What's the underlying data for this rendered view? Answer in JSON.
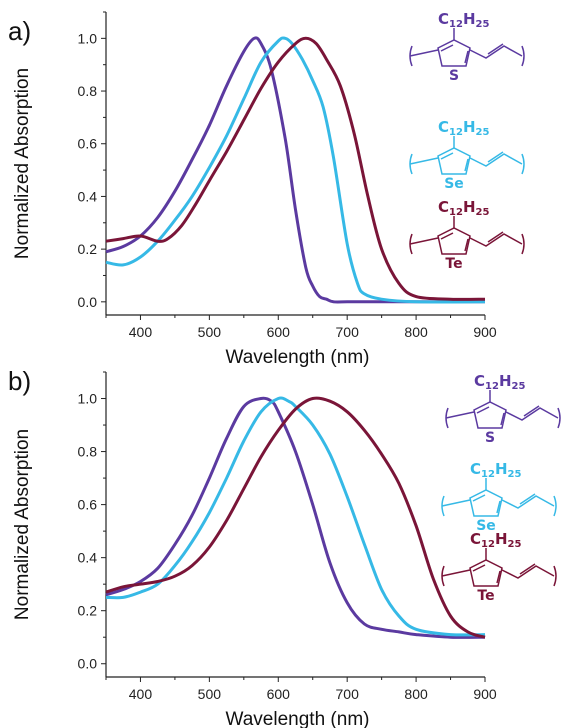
{
  "colors": {
    "thiophene": "#5b3aa0",
    "selenophene": "#36b9e6",
    "tellurophene": "#7a1538"
  },
  "chart_data": [
    {
      "type": "line",
      "panel_label": "a)",
      "xlabel": "Wavelength (nm)",
      "ylabel": "Normalized Absorption",
      "xlim": [
        350,
        900
      ],
      "ylim": [
        -0.05,
        1.1
      ],
      "xticks": [
        "400",
        "500",
        "600",
        "700",
        "800",
        "900"
      ],
      "yticks": [
        "0.0",
        "0.2",
        "0.4",
        "0.6",
        "0.8",
        "1.0"
      ],
      "grid": false,
      "legend": "structures at right",
      "series": [
        {
          "key": "thiophene",
          "x": [
            350,
            375,
            400,
            425,
            450,
            475,
            500,
            525,
            550,
            565,
            575,
            590,
            610,
            625,
            640,
            650,
            660,
            670,
            680,
            700,
            725,
            750,
            800,
            900
          ],
          "y": [
            0.19,
            0.21,
            0.25,
            0.32,
            0.42,
            0.54,
            0.67,
            0.82,
            0.95,
            1.0,
            0.98,
            0.88,
            0.62,
            0.35,
            0.13,
            0.06,
            0.02,
            0.01,
            0.0,
            0.0,
            0.0,
            0.0,
            0.0,
            0.0
          ]
        },
        {
          "key": "selenophene",
          "x": [
            350,
            375,
            400,
            425,
            450,
            475,
            500,
            525,
            550,
            575,
            600,
            610,
            620,
            635,
            650,
            665,
            680,
            700,
            715,
            725,
            750,
            800,
            900
          ],
          "y": [
            0.15,
            0.14,
            0.17,
            0.23,
            0.31,
            0.4,
            0.51,
            0.63,
            0.77,
            0.91,
            0.99,
            1.0,
            0.98,
            0.92,
            0.84,
            0.74,
            0.55,
            0.22,
            0.07,
            0.03,
            0.01,
            0.0,
            0.0
          ]
        },
        {
          "key": "tellurophene",
          "x": [
            350,
            375,
            400,
            425,
            440,
            460,
            480,
            500,
            525,
            550,
            575,
            600,
            625,
            640,
            655,
            670,
            690,
            710,
            730,
            750,
            775,
            800,
            850,
            900
          ],
          "y": [
            0.23,
            0.24,
            0.25,
            0.23,
            0.24,
            0.29,
            0.37,
            0.46,
            0.57,
            0.69,
            0.81,
            0.91,
            0.98,
            1.0,
            0.98,
            0.92,
            0.82,
            0.64,
            0.4,
            0.2,
            0.07,
            0.02,
            0.01,
            0.01
          ]
        }
      ]
    },
    {
      "type": "line",
      "panel_label": "b)",
      "xlabel": "Wavelength (nm)",
      "ylabel": "Normalized Absorption",
      "xlim": [
        350,
        900
      ],
      "ylim": [
        -0.05,
        1.1
      ],
      "xticks": [
        "400",
        "500",
        "600",
        "700",
        "800",
        "900"
      ],
      "yticks": [
        "0.0",
        "0.2",
        "0.4",
        "0.6",
        "0.8",
        "1.0"
      ],
      "grid": false,
      "legend": "structures at right",
      "series": [
        {
          "key": "thiophene",
          "x": [
            350,
            375,
            400,
            425,
            450,
            475,
            500,
            525,
            550,
            575,
            590,
            600,
            625,
            650,
            675,
            700,
            725,
            750,
            775,
            800,
            850,
            900
          ],
          "y": [
            0.26,
            0.28,
            0.31,
            0.36,
            0.45,
            0.56,
            0.7,
            0.85,
            0.97,
            1.0,
            0.99,
            0.95,
            0.8,
            0.6,
            0.38,
            0.23,
            0.15,
            0.13,
            0.12,
            0.11,
            0.1,
            0.1
          ]
        },
        {
          "key": "selenophene",
          "x": [
            350,
            375,
            400,
            425,
            450,
            475,
            500,
            525,
            550,
            575,
            600,
            615,
            625,
            650,
            675,
            700,
            725,
            750,
            775,
            800,
            850,
            900
          ],
          "y": [
            0.25,
            0.25,
            0.27,
            0.3,
            0.37,
            0.46,
            0.57,
            0.7,
            0.84,
            0.95,
            1.0,
            0.99,
            0.97,
            0.9,
            0.79,
            0.63,
            0.45,
            0.28,
            0.18,
            0.13,
            0.11,
            0.11
          ]
        },
        {
          "key": "tellurophene",
          "x": [
            350,
            375,
            400,
            425,
            450,
            475,
            500,
            525,
            550,
            575,
            600,
            625,
            650,
            675,
            700,
            725,
            750,
            775,
            800,
            825,
            850,
            875,
            900
          ],
          "y": [
            0.27,
            0.29,
            0.3,
            0.31,
            0.33,
            0.37,
            0.44,
            0.54,
            0.66,
            0.78,
            0.88,
            0.96,
            1.0,
            0.99,
            0.95,
            0.88,
            0.79,
            0.68,
            0.52,
            0.32,
            0.18,
            0.12,
            0.1
          ]
        }
      ]
    }
  ],
  "structures": [
    {
      "key": "thiophene",
      "substituent": "C",
      "sub1": "12",
      "h": "H",
      "sub2": "25",
      "heteroatom": "S"
    },
    {
      "key": "selenophene",
      "substituent": "C",
      "sub1": "12",
      "h": "H",
      "sub2": "25",
      "heteroatom": "Se"
    },
    {
      "key": "tellurophene",
      "substituent": "C",
      "sub1": "12",
      "h": "H",
      "sub2": "25",
      "heteroatom": "Te"
    }
  ]
}
